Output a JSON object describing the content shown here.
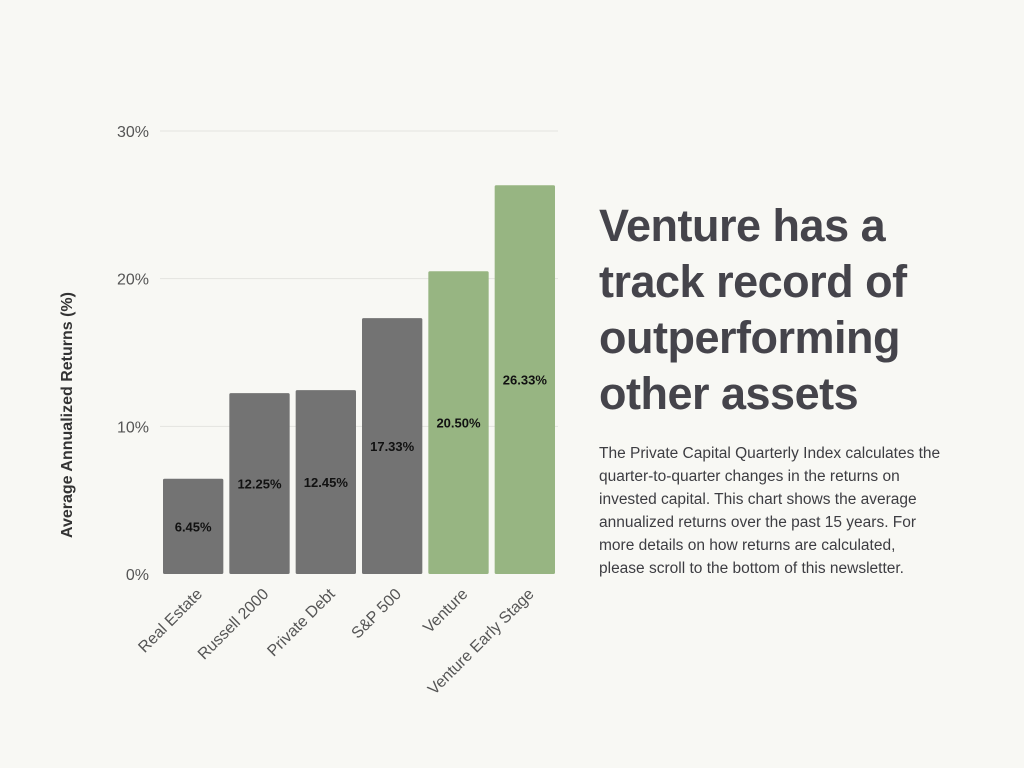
{
  "headline": "Venture has a track record of outperforming other assets",
  "description": "The Private Capital Quarterly Index calculates the quarter-to-quarter changes in the returns on invested capital. This chart shows the average annualized returns over the past 15 years. For more details on how returns are calculated, please scroll to the bottom of this newsletter.",
  "colors": {
    "other_assets": "#737373",
    "venture": "#97b582",
    "background": "#f8f8f4"
  },
  "chart_data": {
    "type": "bar",
    "title": "",
    "xlabel": "",
    "ylabel": "Average Annualized Returns (%)",
    "ylim": [
      0,
      30
    ],
    "yticks": [
      0,
      10,
      20,
      30
    ],
    "ytick_labels": [
      "0%",
      "10%",
      "20%",
      "30%"
    ],
    "grid": true,
    "categories": [
      "Real Estate",
      "Russell 2000",
      "Private Debt",
      "S&P 500",
      "Venture",
      "Venture Early Stage"
    ],
    "values": [
      6.45,
      12.25,
      12.45,
      17.33,
      20.5,
      26.33
    ],
    "data_labels": [
      "6.45%",
      "12.25%",
      "12.45%",
      "17.33%",
      "20.50%",
      "26.33%"
    ],
    "bar_colors": [
      "#737373",
      "#737373",
      "#737373",
      "#737373",
      "#97b582",
      "#97b582"
    ]
  }
}
